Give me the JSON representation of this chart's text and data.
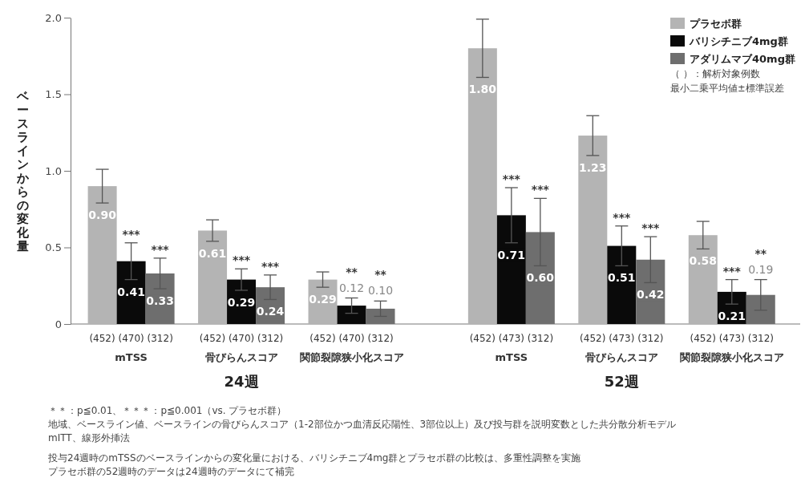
{
  "chart_data": {
    "type": "bar",
    "ylabel": "ベースラインからの変化量",
    "categories": [
      "(452) (470) (312)\nmTSS",
      "(452) (470) (312)\n骨びらんスコア",
      "(452) (470) (312)\n関節裂隙狭小化スコア",
      "(452) (473) (312)\nmTSS",
      "(452) (473) (312)\n骨びらんスコア",
      "(452) (473) (312)\n関節裂隙狭小化スコア"
    ],
    "series": [
      {
        "name": "プラセボ群",
        "color": "#b4b4b4",
        "values": [
          0.9,
          0.61,
          0.29,
          1.8,
          1.23,
          0.58
        ],
        "errors": [
          0.11,
          0.07,
          0.05,
          0.19,
          0.13,
          0.09
        ],
        "value_labels": [
          "0.90",
          "0.61",
          "0.29",
          "1.80",
          "1.23",
          "0.58"
        ]
      },
      {
        "name": "バリシチニブ4mg群",
        "color": "#0a0a0a",
        "values": [
          0.41,
          0.29,
          0.12,
          0.71,
          0.51,
          0.21
        ],
        "errors": [
          0.12,
          0.07,
          0.05,
          0.18,
          0.13,
          0.08
        ],
        "value_labels": [
          "0.41",
          "0.29",
          "0.12",
          "0.71",
          "0.51",
          "0.21"
        ]
      },
      {
        "name": "アダリムマブ40mg群",
        "color": "#6e6e6e",
        "values": [
          0.33,
          0.24,
          0.1,
          0.6,
          0.42,
          0.19
        ],
        "errors": [
          0.1,
          0.08,
          0.05,
          0.22,
          0.15,
          0.1
        ],
        "value_labels": [
          "0.33",
          "0.24",
          "0.10",
          "0.60",
          "0.42",
          "0.19"
        ]
      }
    ],
    "ylim": [
      0,
      2.0
    ],
    "yticks": [
      0,
      {
        "value": 0.5,
        "label": "0.5"
      },
      {
        "value": 1,
        "label": "1.0"
      },
      {
        "value": 1.5,
        "label": "1.5"
      },
      {
        "value": 2,
        "label": "2.0"
      }
    ],
    "legend": "top right",
    "annotations": [
      "24週",
      "52週",
      "（ ）：解析対象例数",
      "最小二乗平均値±標準誤差",
      "＊＊：p≦0.01、＊＊＊：p≦0.001（vs. プラセボ群）",
      "地域、ベースライン値、ベースラインの骨びらんスコア（1-2部位かつ血清反応陽性、3部位以上）及び投与群を説明変数とした共分散分析モデル",
      "mITT、線形外挿法",
      "投与24週時のmTSSのベースラインからの変化量における、バリシチニブ4mg群とプラセボ群の比較は、多重性調整を実施",
      "プラセボ群の52週時のデータは24週時のデータにて補完",
      "***",
      "***",
      "***",
      "***",
      "**",
      "**",
      "***",
      "***",
      "***",
      "***",
      "***",
      "**"
    ]
  }
}
